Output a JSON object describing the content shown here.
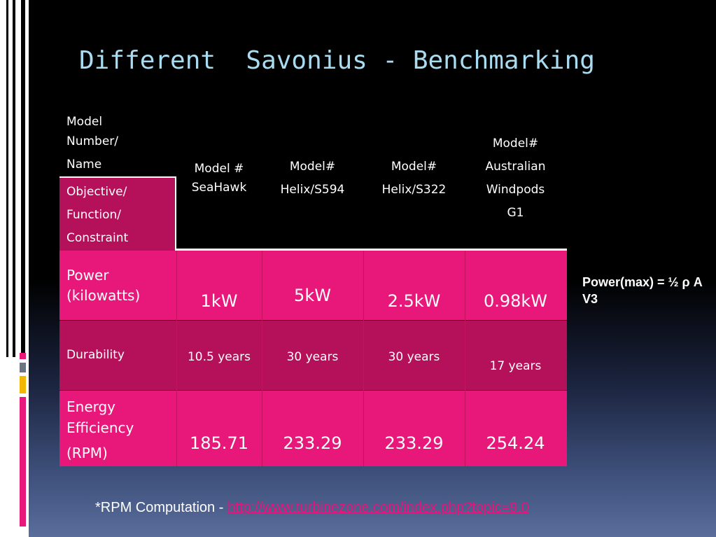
{
  "title": "Different  Savonius - Benchmarking",
  "table": {
    "corner_header": [
      "Model",
      "Number/",
      "Name"
    ],
    "corner_row_label": [
      "Objective/",
      "Function/",
      "Constraint"
    ],
    "columns": [
      [
        "Model #",
        "SeaHawk"
      ],
      [
        "Model#",
        "Helix/S594"
      ],
      [
        "Model#",
        "Helix/S322"
      ],
      [
        "Model#",
        "Australian",
        "Windpods",
        "G1"
      ]
    ],
    "rows": [
      {
        "label": [
          "Power",
          "(kilowatts)"
        ],
        "values": [
          "1kW",
          "5kW",
          "2.5kW",
          "0.98kW"
        ]
      },
      {
        "label": [
          "Durability"
        ],
        "values": [
          "10.5 years",
          "30 years",
          "30 years",
          "17 years"
        ]
      },
      {
        "label": [
          "Energy",
          "Efficiency",
          "(RPM)"
        ],
        "values": [
          "185.71",
          "233.29",
          "233.29",
          "254.24"
        ]
      }
    ]
  },
  "note": "Power(max) = ½ ρ A V3",
  "footer": {
    "prefix": "*RPM Computation - ",
    "link": "http://www.turbinezone.com/index.php?topic=9.0"
  },
  "colors": {
    "title": "#a9dcf0",
    "pink": "#e8177a",
    "magenta": "#b5105a",
    "link": "#e8127a"
  }
}
